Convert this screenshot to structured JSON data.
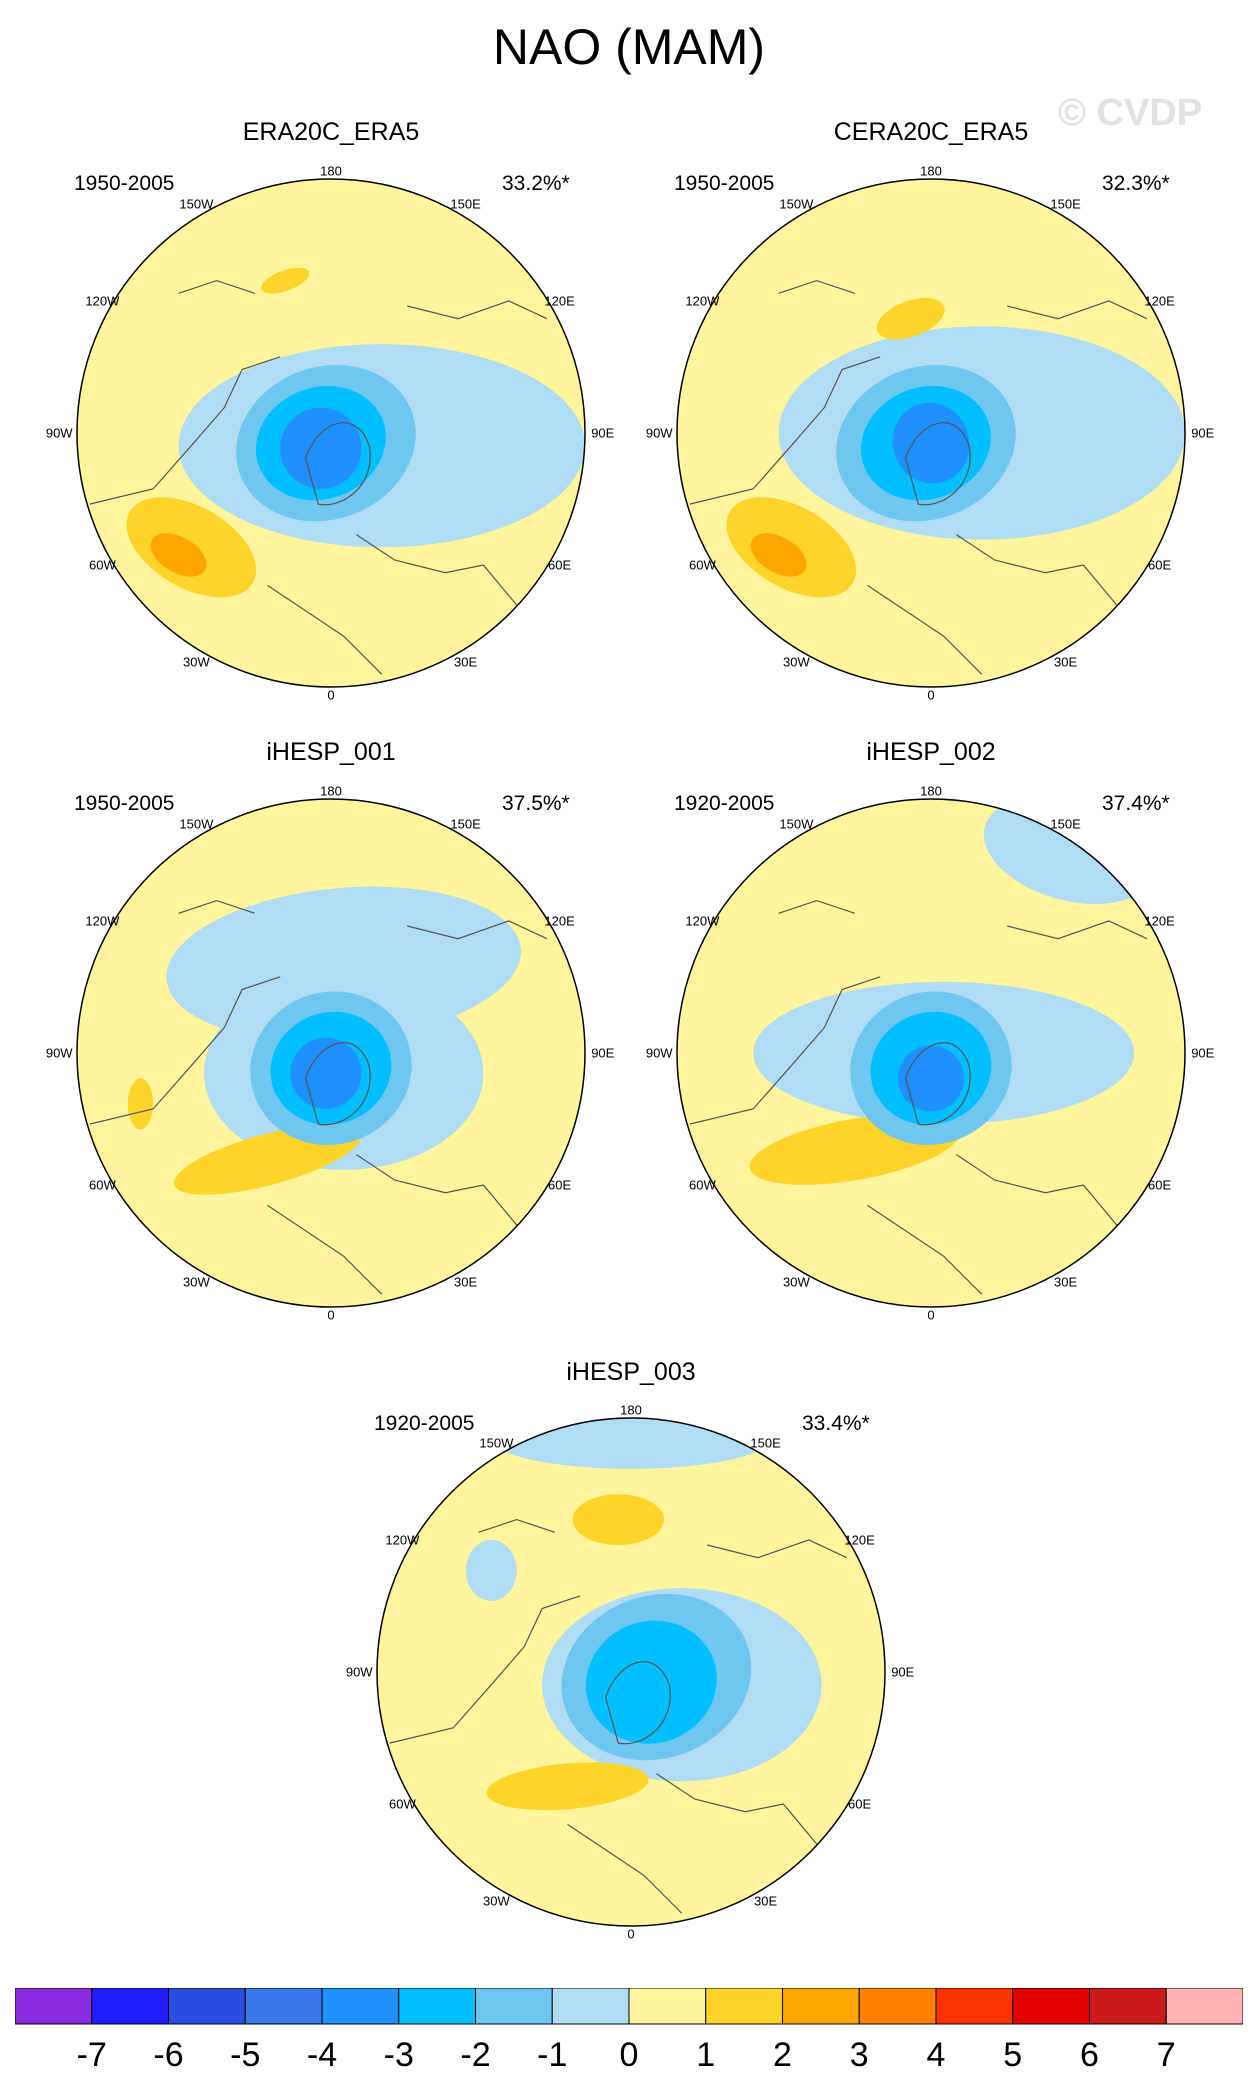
{
  "figure_title": "NAO (MAM)",
  "watermark": "© CVDP",
  "longitude_labels": [
    "180",
    "150E",
    "120E",
    "90E",
    "60E",
    "30E",
    "0",
    "30W",
    "60W",
    "90W",
    "120W",
    "150W"
  ],
  "colors": {
    "land_outline": "#555555",
    "map_border": "#000000"
  },
  "chart_data": {
    "type": "heatmap",
    "projection": "north-polar-stereographic",
    "variable": "NAO pattern (MAM)",
    "panels": [
      {
        "name": "ERA20C_ERA5",
        "period": "1950-2005",
        "variance_explained": "33.2%*",
        "features": [
          {
            "lon": 0,
            "colat": 0.25,
            "value": -4,
            "note": "Arctic low center over Greenland"
          },
          {
            "lon": -40,
            "colat": 0.68,
            "value": 3,
            "note": "Atlantic high near Azores"
          },
          {
            "lon": 155,
            "colat": 0.55,
            "value": 1,
            "note": "Pacific positive lobe"
          }
        ]
      },
      {
        "name": "CERA20C_ERA5",
        "period": "1950-2005",
        "variance_explained": "32.3%*",
        "features": [
          {
            "lon": 0,
            "colat": 0.25,
            "value": -4,
            "note": "Arctic low center"
          },
          {
            "lon": -40,
            "colat": 0.68,
            "value": 3,
            "note": "Atlantic high"
          },
          {
            "lon": 155,
            "colat": 0.55,
            "value": 2,
            "note": "Pacific positive lobe"
          }
        ]
      },
      {
        "name": "iHESP_001",
        "period": "1950-2005",
        "variance_explained": "37.5%*",
        "features": [
          {
            "lon": 0,
            "colat": 0.25,
            "value": -4,
            "note": "Arctic low center"
          },
          {
            "lon": -10,
            "colat": 0.55,
            "value": 2,
            "note": "Atlantic-Europe positive band"
          }
        ]
      },
      {
        "name": "iHESP_002",
        "period": "1920-2005",
        "variance_explained": "37.4%*",
        "features": [
          {
            "lon": 0,
            "colat": 0.25,
            "value": -4,
            "note": "Arctic low center"
          },
          {
            "lon": -25,
            "colat": 0.6,
            "value": 2,
            "note": "Atlantic positive band"
          }
        ]
      },
      {
        "name": "iHESP_003",
        "period": "1920-2005",
        "variance_explained": "33.4%*",
        "features": [
          {
            "lon": 0,
            "colat": 0.25,
            "value": -3,
            "note": "Arctic low center"
          },
          {
            "lon": -20,
            "colat": 0.6,
            "value": 2,
            "note": "Atlantic positive lobe"
          },
          {
            "lon": 165,
            "colat": 0.5,
            "value": 2,
            "note": "Pacific positive lobe"
          }
        ]
      }
    ],
    "colorbar": {
      "labels": [
        "-7",
        "-6",
        "-5",
        "-4",
        "-3",
        "-2",
        "-1",
        "0",
        "1",
        "2",
        "3",
        "4",
        "5",
        "6",
        "7"
      ],
      "colors": [
        "#8a2be2",
        "#1e1eff",
        "#2a4fe0",
        "#3a78ea",
        "#1e90ff",
        "#00bfff",
        "#6fc6f0",
        "#b0dcf4",
        "#fff59d",
        "#ffd42a",
        "#ffa500",
        "#ff7f00",
        "#ff3300",
        "#e60000",
        "#cc1a1a",
        "#ffb3b3"
      ]
    }
  }
}
